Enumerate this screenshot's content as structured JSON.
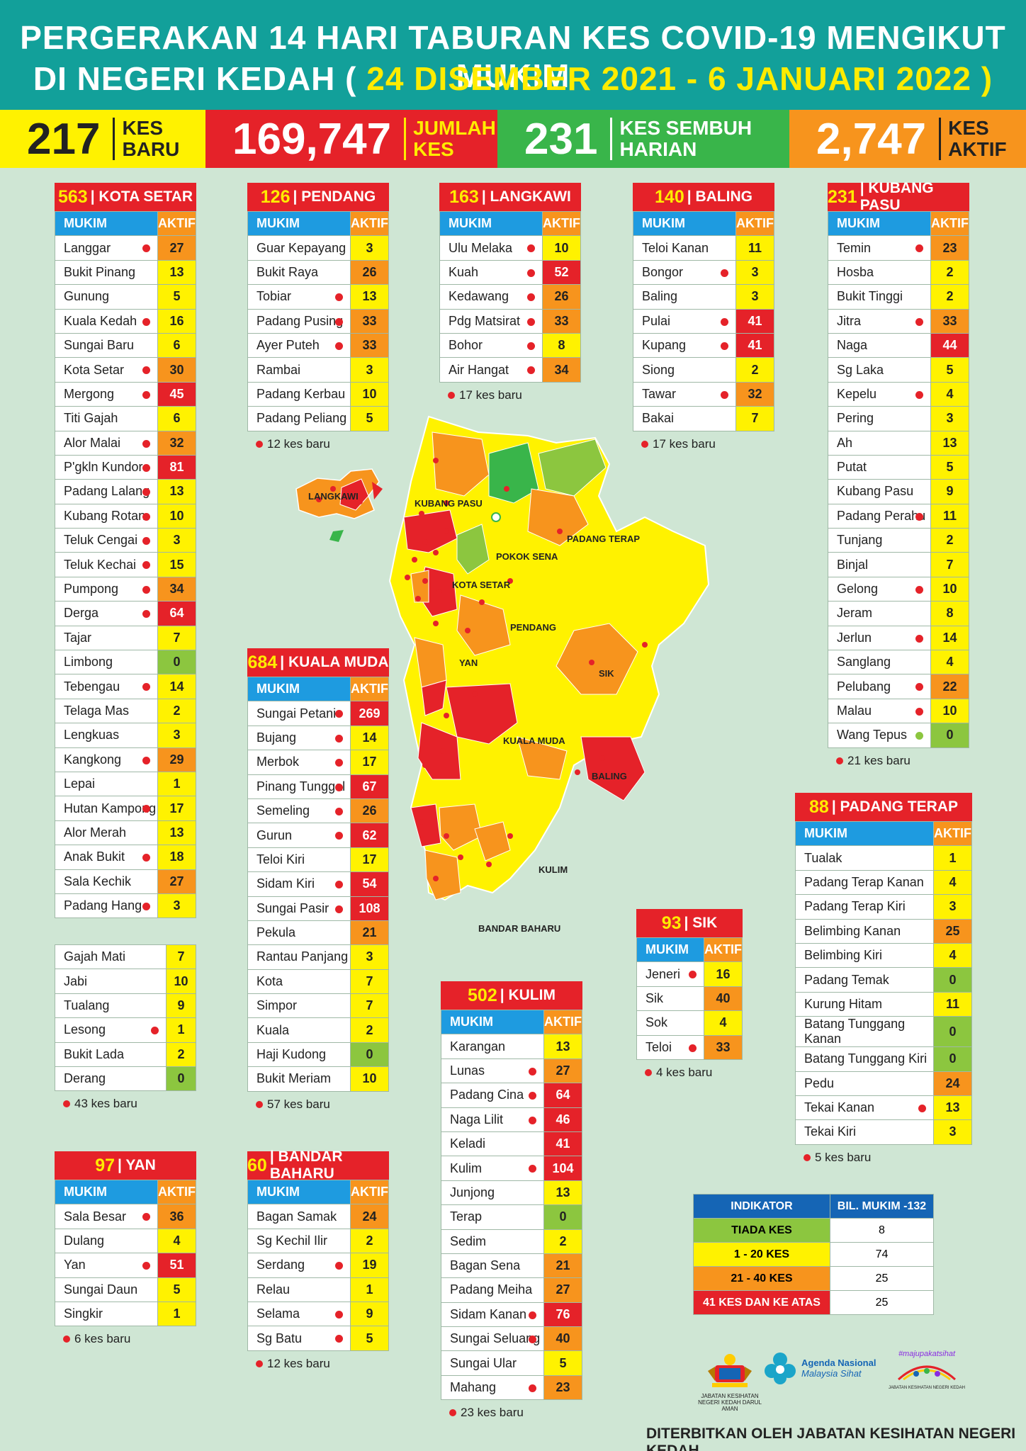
{
  "header": {
    "line1": "PERGERAKAN 14 HARI TABURAN KES COVID-19 MENGIKUT MUKIM",
    "line2_prefix": "DI NEGERI KEDAH (",
    "line2_dates": " 24 DISEMBER 2021 - 6 JANUARI 2022 ",
    "line2_suffix": ")"
  },
  "stats": [
    {
      "value": "217",
      "label": "KES BARU",
      "bg": "#fff200",
      "color": "#222222"
    },
    {
      "value": "169,747",
      "label": "JUMLAH KES",
      "bg": "#e52229",
      "color": "#ffffff",
      "label_color": "#ffec00"
    },
    {
      "value": "231",
      "label": "KES SEMBUH HARIAN",
      "bg": "#39b54a",
      "color": "#ffffff"
    },
    {
      "value": "2,747",
      "label": "KES AKTIF",
      "bg": "#f7941d",
      "color": "#ffffff",
      "label_color": "#222222"
    }
  ],
  "col_labels": {
    "mukim": "MUKIM",
    "aktif": "AKTIF"
  },
  "districts": {
    "kota_setar": {
      "total": "563",
      "name": "KOTA SETAR",
      "note": "43 kes baru",
      "rows": [
        [
          "Langgar",
          27,
          1
        ],
        [
          "Bukit Pinang",
          13,
          0
        ],
        [
          "Gunung",
          5,
          0
        ],
        [
          "Kuala Kedah",
          16,
          1
        ],
        [
          "Sungai Baru",
          6,
          0
        ],
        [
          "Kota Setar",
          30,
          1
        ],
        [
          "Mergong",
          45,
          1
        ],
        [
          "Titi Gajah",
          6,
          0
        ],
        [
          "Alor Malai",
          32,
          1
        ],
        [
          "P'gkln Kundor",
          81,
          1
        ],
        [
          "Padang Lalang",
          13,
          1
        ],
        [
          "Kubang Rotan",
          10,
          1
        ],
        [
          "Teluk Cengai",
          3,
          1
        ],
        [
          "Teluk Kechai",
          15,
          1
        ],
        [
          "Pumpong",
          34,
          1
        ],
        [
          "Derga",
          64,
          1
        ],
        [
          "Tajar",
          7,
          0
        ],
        [
          "Limbong",
          0,
          0
        ],
        [
          "Tebengau",
          14,
          1
        ],
        [
          "Telaga Mas",
          2,
          0
        ],
        [
          "Lengkuas",
          3,
          0
        ],
        [
          "Kangkong",
          29,
          1
        ],
        [
          "Lepai",
          1,
          0
        ],
        [
          "Hutan Kampong",
          17,
          1
        ],
        [
          "Alor Merah",
          13,
          0
        ],
        [
          "Anak Bukit",
          18,
          1
        ],
        [
          "Sala Kechik",
          27,
          0
        ],
        [
          "Padang Hang",
          3,
          1
        ]
      ],
      "rows2": [
        [
          "Gajah Mati",
          7,
          0
        ],
        [
          "Jabi",
          10,
          0
        ],
        [
          "Tualang",
          9,
          0
        ],
        [
          "Lesong",
          1,
          1
        ],
        [
          "Bukit Lada",
          2,
          0
        ],
        [
          "Derang",
          0,
          0
        ]
      ]
    },
    "pendang": {
      "total": "126",
      "name": "PENDANG",
      "note": "12 kes baru",
      "rows": [
        [
          "Guar Kepayang",
          3,
          0
        ],
        [
          "Bukit Raya",
          26,
          0
        ],
        [
          "Tobiar",
          13,
          1
        ],
        [
          "Padang Pusing",
          33,
          1
        ],
        [
          "Ayer Puteh",
          33,
          1
        ],
        [
          "Rambai",
          3,
          0
        ],
        [
          "Padang Kerbau",
          10,
          0
        ],
        [
          "Padang Peliang",
          5,
          0
        ]
      ]
    },
    "langkawi": {
      "total": "163",
      "name": "LANGKAWI",
      "note": "17 kes baru",
      "rows": [
        [
          "Ulu Melaka",
          10,
          1
        ],
        [
          "Kuah",
          52,
          1
        ],
        [
          "Kedawang",
          26,
          1
        ],
        [
          "Pdg Matsirat",
          33,
          1
        ],
        [
          "Bohor",
          8,
          1
        ],
        [
          "Air Hangat",
          34,
          1
        ]
      ]
    },
    "baling": {
      "total": "140",
      "name": "BALING",
      "note": "17 kes baru",
      "rows": [
        [
          "Teloi Kanan",
          11,
          0
        ],
        [
          "Bongor",
          3,
          1
        ],
        [
          "Baling",
          3,
          0
        ],
        [
          "Pulai",
          41,
          1
        ],
        [
          "Kupang",
          41,
          1
        ],
        [
          "Siong",
          2,
          0
        ],
        [
          "Tawar",
          32,
          1
        ],
        [
          "Bakai",
          7,
          0
        ]
      ]
    },
    "kubang_pasu": {
      "total": "231",
      "name": "KUBANG PASU",
      "note": "21 kes baru",
      "rows": [
        [
          "Temin",
          23,
          1
        ],
        [
          "Hosba",
          2,
          0
        ],
        [
          "Bukit Tinggi",
          2,
          0
        ],
        [
          "Jitra",
          33,
          1
        ],
        [
          "Naga",
          44,
          0
        ],
        [
          "Sg Laka",
          5,
          0
        ],
        [
          "Kepelu",
          4,
          1
        ],
        [
          "Pering",
          3,
          0
        ],
        [
          "Ah",
          13,
          0
        ],
        [
          "Putat",
          5,
          0
        ],
        [
          "Kubang Pasu",
          9,
          0
        ],
        [
          "Padang Perahu",
          11,
          1
        ],
        [
          "Tunjang",
          2,
          0
        ],
        [
          "Binjal",
          7,
          0
        ],
        [
          "Gelong",
          10,
          1
        ],
        [
          "Jeram",
          8,
          0
        ],
        [
          "Jerlun",
          14,
          1
        ],
        [
          "Sanglang",
          4,
          0
        ],
        [
          "Pelubang",
          22,
          1
        ],
        [
          "Malau",
          10,
          1
        ],
        [
          "Wang Tepus",
          0,
          2
        ]
      ]
    },
    "kuala_muda": {
      "total": "684",
      "name": "KUALA MUDA",
      "note": "57 kes baru",
      "rows": [
        [
          "Sungai Petani",
          269,
          1
        ],
        [
          "Bujang",
          14,
          1
        ],
        [
          "Merbok",
          17,
          1
        ],
        [
          "Pinang Tunggal",
          67,
          1
        ],
        [
          "Semeling",
          26,
          1
        ],
        [
          "Gurun",
          62,
          1
        ],
        [
          "Teloi Kiri",
          17,
          0
        ],
        [
          "Sidam Kiri",
          54,
          1
        ],
        [
          "Sungai Pasir",
          108,
          1
        ],
        [
          "Pekula",
          21,
          0
        ],
        [
          "Rantau Panjang",
          3,
          0
        ],
        [
          "Kota",
          7,
          0
        ],
        [
          "Simpor",
          7,
          0
        ],
        [
          "Kuala",
          2,
          0
        ],
        [
          "Haji Kudong",
          0,
          0
        ],
        [
          "Bukit Meriam",
          10,
          0
        ]
      ]
    },
    "padang_terap": {
      "total": "88",
      "name": "PADANG TERAP",
      "note": "5 kes baru",
      "rows": [
        [
          "Tualak",
          1,
          0
        ],
        [
          "Padang Terap Kanan",
          4,
          0
        ],
        [
          "Padang Terap Kiri",
          3,
          0
        ],
        [
          "Belimbing Kanan",
          25,
          0
        ],
        [
          "Belimbing Kiri",
          4,
          0
        ],
        [
          "Padang Temak",
          0,
          0
        ],
        [
          "Kurung Hitam",
          11,
          0
        ],
        [
          "Batang Tunggang Kanan",
          0,
          0
        ],
        [
          "Batang Tunggang Kiri",
          0,
          0
        ],
        [
          "Pedu",
          24,
          0
        ],
        [
          "Tekai Kanan",
          13,
          1
        ],
        [
          "Tekai Kiri",
          3,
          0
        ]
      ]
    },
    "sik": {
      "total": "93",
      "name": "SIK",
      "note": "4 kes baru",
      "rows": [
        [
          "Jeneri",
          16,
          1
        ],
        [
          "Sik",
          40,
          0
        ],
        [
          "Sok",
          4,
          0
        ],
        [
          "Teloi",
          33,
          1
        ]
      ]
    },
    "kulim": {
      "total": "502",
      "name": "KULIM",
      "note": "23 kes baru",
      "rows": [
        [
          "Karangan",
          13,
          0
        ],
        [
          "Lunas",
          27,
          1
        ],
        [
          "Padang Cina",
          64,
          1
        ],
        [
          "Naga Lilit",
          46,
          1
        ],
        [
          "Keladi",
          41,
          0
        ],
        [
          "Kulim",
          104,
          1
        ],
        [
          "Junjong",
          13,
          0
        ],
        [
          "Terap",
          0,
          0
        ],
        [
          "Sedim",
          2,
          0
        ],
        [
          "Bagan Sena",
          21,
          0
        ],
        [
          "Padang Meiha",
          27,
          0
        ],
        [
          "Sidam Kanan",
          76,
          1
        ],
        [
          "Sungai Seluang",
          40,
          1
        ],
        [
          "Sungai Ular",
          5,
          0
        ],
        [
          "Mahang",
          23,
          1
        ]
      ]
    },
    "yan": {
      "total": "97",
      "name": "YAN",
      "note": "6 kes baru",
      "rows": [
        [
          "Sala Besar",
          36,
          1
        ],
        [
          "Dulang",
          4,
          0
        ],
        [
          "Yan",
          51,
          1
        ],
        [
          "Sungai Daun",
          5,
          0
        ],
        [
          "Singkir",
          1,
          0
        ]
      ]
    },
    "bandar_baharu": {
      "total": "60",
      "name": "BANDAR BAHARU",
      "note": "12 kes baru",
      "rows": [
        [
          "Bagan Samak",
          24,
          0
        ],
        [
          "Sg Kechil Ilir",
          2,
          0
        ],
        [
          "Serdang",
          19,
          1
        ],
        [
          "Relau",
          1,
          0
        ],
        [
          "Selama",
          9,
          1
        ],
        [
          "Sg Batu",
          5,
          1
        ]
      ]
    }
  },
  "map_labels": [
    "LANGKAWI",
    "KUBANG PASU",
    "PADANG TERAP",
    "POKOK SENA",
    "KOTA SETAR",
    "PENDANG",
    "YAN",
    "SIK",
    "KUALA MUDA",
    "BALING",
    "KULIM",
    "BANDAR BAHARU"
  ],
  "legend": {
    "head1": "INDIKATOR",
    "head2": "BIL. MUKIM -132",
    "rows": [
      {
        "label": "TIADA KES",
        "count": "8",
        "color": "#8cc63f"
      },
      {
        "label": "1 - 20 KES",
        "count": "74",
        "color": "#fff200"
      },
      {
        "label": "21 - 40 KES",
        "count": "25",
        "color": "#f7941d"
      },
      {
        "label": "41 KES DAN KE ATAS",
        "count": "25",
        "color": "#e52229"
      }
    ]
  },
  "logos": {
    "jkn_caption": "JABATAN KESIHATAN NEGERI KEDAH DARUL AMAN",
    "agenda_line1": "Agenda Nasional",
    "agenda_line2": "Malaysia Sihat",
    "mps_tag": "#majupakatsihat",
    "mps_caption": "JABATAN KESIHATAN NEGERI KEDAH"
  },
  "footer": "DITERBITKAN OLEH JABATAN KESIHATAN NEGERI KEDAH"
}
